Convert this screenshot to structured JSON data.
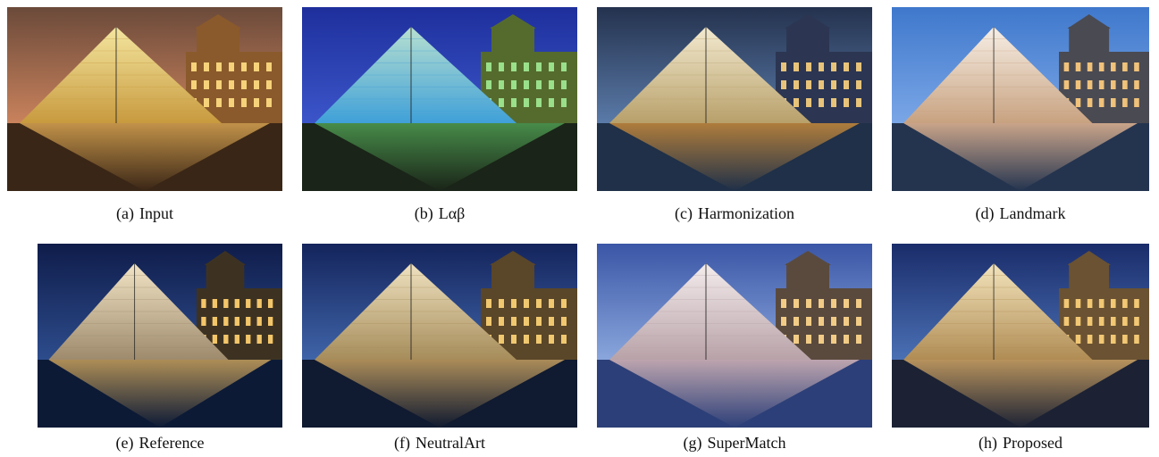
{
  "figure": {
    "panels": [
      {
        "label": "(a)",
        "caption": "Input",
        "colors": {
          "sky_top": "#6b4a3a",
          "sky_bottom": "#c9825c",
          "glass_light": "#f4e6a0",
          "glass_dark": "#c89a3e",
          "palace": "#8a5a2c",
          "window": "#f6d27a",
          "water": "#3a2616",
          "reflection": "#d9a552"
        }
      },
      {
        "label": "(b)",
        "caption": "Lαβ",
        "colors": {
          "sky_top": "#1e2f9c",
          "sky_bottom": "#3b55c9",
          "glass_light": "#b8e0d0",
          "glass_dark": "#3fa0d8",
          "palace": "#556b2e",
          "window": "#9adf8a",
          "water": "#1a2418",
          "reflection": "#4f9e52"
        }
      },
      {
        "label": "(c)",
        "caption": "Harmonization",
        "colors": {
          "sky_top": "#24324e",
          "sky_bottom": "#5a7aa8",
          "glass_light": "#f3ead0",
          "glass_dark": "#b8a06a",
          "palace": "#2c3652",
          "window": "#e8c47a",
          "water": "#1f3048",
          "reflection": "#c88a3a"
        }
      },
      {
        "label": "(d)",
        "caption": "Landmark",
        "colors": {
          "sky_top": "#3f78cc",
          "sky_bottom": "#7aa6e6",
          "glass_light": "#f7efe6",
          "glass_dark": "#c8a280",
          "palace": "#4a4a52",
          "window": "#f0c27a",
          "water": "#24344f",
          "reflection": "#e6b894"
        }
      },
      {
        "label": "(e)",
        "caption": "Reference",
        "colors": {
          "sky_top": "#0f1c4a",
          "sky_bottom": "#2d4c8c",
          "glass_light": "#f2e4c6",
          "glass_dark": "#9e8a6c",
          "palace": "#3d3222",
          "window": "#f4c66a",
          "water": "#0c1a36",
          "reflection": "#caa25c"
        }
      },
      {
        "label": "(f)",
        "caption": "NeutralArt",
        "colors": {
          "sky_top": "#14245c",
          "sky_bottom": "#3f64a8",
          "glass_light": "#efe2c0",
          "glass_dark": "#a68c5a",
          "palace": "#5a4628",
          "window": "#f0c870",
          "water": "#101a30",
          "reflection": "#c6a060"
        }
      },
      {
        "label": "(g)",
        "caption": "SuperMatch",
        "colors": {
          "sky_top": "#3a56a6",
          "sky_bottom": "#8aa6dc",
          "glass_light": "#f4ecec",
          "glass_dark": "#b8a2a8",
          "palace": "#5a4a3e",
          "window": "#f2cc86",
          "water": "#2c3f78",
          "reflection": "#d6b6b8"
        }
      },
      {
        "label": "(h)",
        "caption": "Proposed",
        "colors": {
          "sky_top": "#1a2c6a",
          "sky_bottom": "#4a70b4",
          "glass_light": "#f3e4bc",
          "glass_dark": "#b08c54",
          "palace": "#6a5232",
          "window": "#f2c874",
          "water": "#1c2234",
          "reflection": "#d2a664"
        }
      }
    ]
  }
}
